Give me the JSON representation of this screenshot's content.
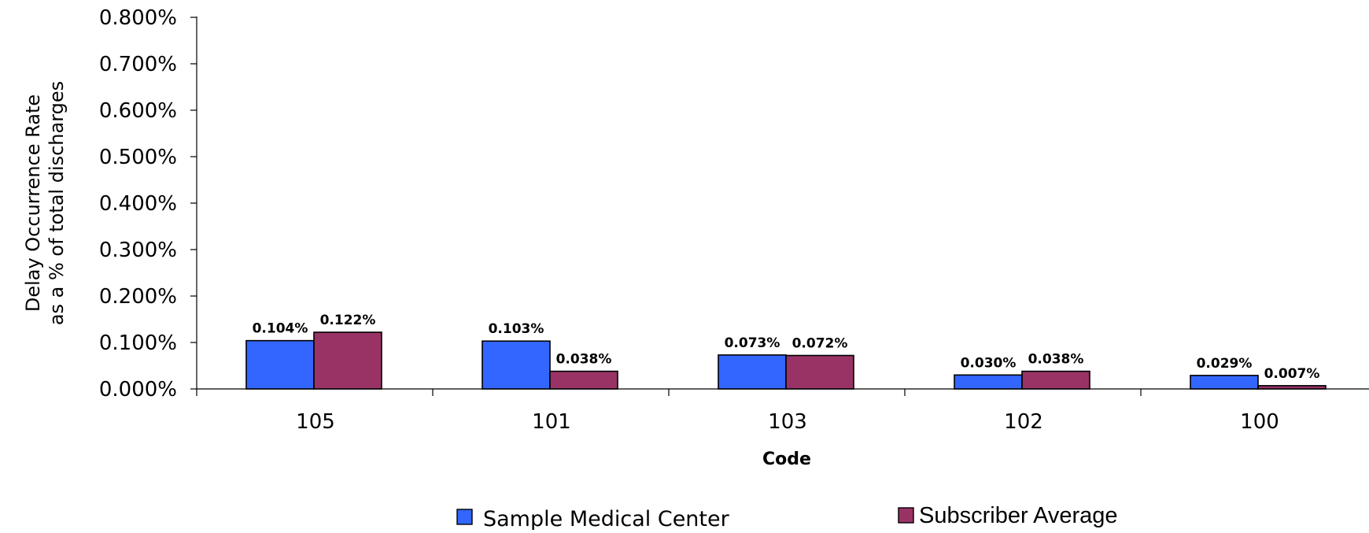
{
  "chart_data": {
    "type": "bar",
    "categories": [
      "105",
      "101",
      "103",
      "102",
      "100"
    ],
    "series": [
      {
        "name": "Sample Medical Center",
        "values": [
          0.104,
          0.103,
          0.073,
          0.03,
          0.029
        ],
        "labels": [
          "0.104%",
          "0.103%",
          "0.073%",
          "0.030%",
          "0.029%"
        ],
        "color": "#3366FF"
      },
      {
        "name": "Subscriber Average",
        "values": [
          0.122,
          0.038,
          0.072,
          0.038,
          0.007
        ],
        "labels": [
          "0.122%",
          "0.038%",
          "0.072%",
          "0.038%",
          "0.007%"
        ],
        "color": "#993366"
      }
    ],
    "xlabel": "Code",
    "ylabel_lines": [
      "Delay Occurrence Rate",
      "as a % of total discharges"
    ],
    "ylim": [
      0,
      0.8
    ],
    "yticks": [
      0,
      0.1,
      0.2,
      0.3,
      0.4,
      0.5,
      0.6,
      0.7,
      0.8
    ],
    "ytick_labels": [
      "0.000%",
      "0.100%",
      "0.200%",
      "0.300%",
      "0.400%",
      "0.500%",
      "0.600%",
      "0.700%",
      "0.800%"
    ],
    "grid": false,
    "legend_position": "bottom"
  }
}
